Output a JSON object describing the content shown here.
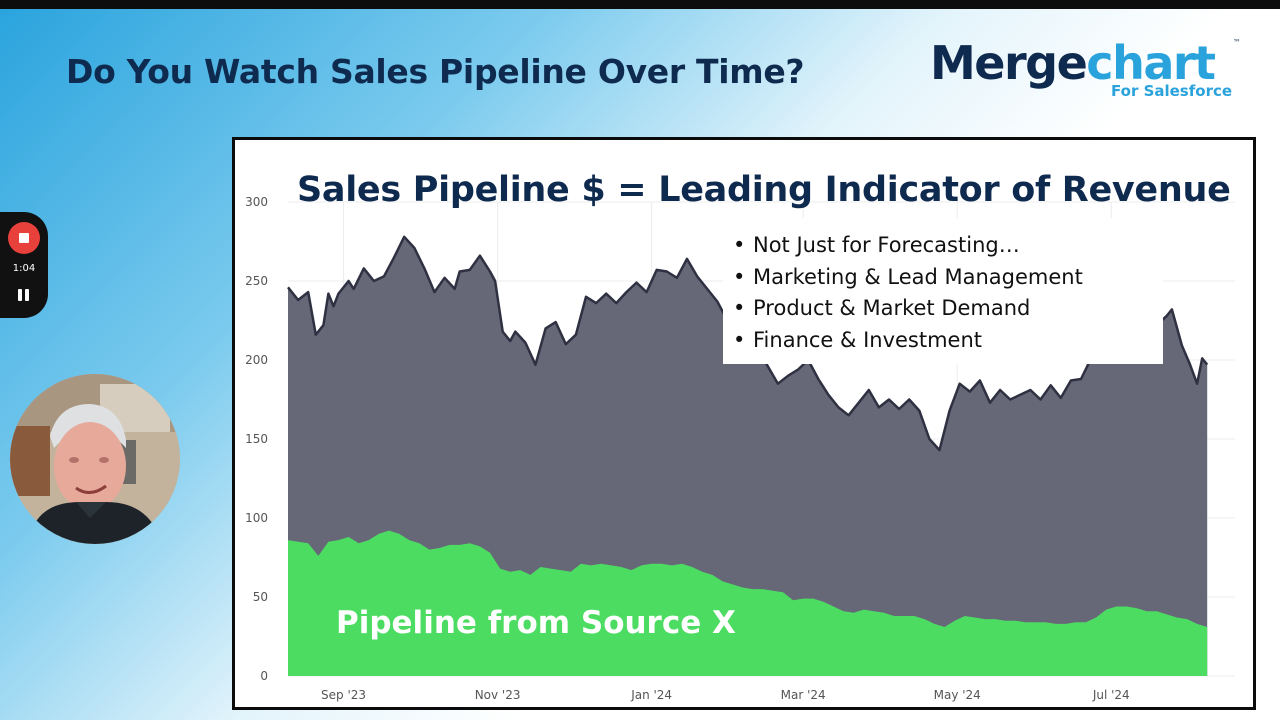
{
  "slide": {
    "title": "Do You Watch Sales Pipeline Over Time?"
  },
  "logo": {
    "name_part1": "Merge",
    "name_part2": "chart",
    "trademark": "™",
    "subtitle": "For Salesforce",
    "colors": {
      "dark": "#0f2a4f",
      "light": "#2aa3dc"
    }
  },
  "recorder": {
    "time": "1:04",
    "stop_icon": "stop-icon",
    "pause_icon": "pause-icon"
  },
  "chart_data": {
    "type": "area",
    "title": "Sales Pipeline $ = Leading Indicator of Revenue",
    "bullets": [
      "Not Just for Forecasting…",
      "Marketing & Lead Management",
      "Product & Market Demand",
      "Finance & Investment"
    ],
    "overlay_label": "Pipeline from Source X",
    "x_ticks": [
      {
        "date": "2023-09-01",
        "label": "Sep '23"
      },
      {
        "date": "2023-11-01",
        "label": "Nov '23"
      },
      {
        "date": "2024-01-01",
        "label": "Jan '24"
      },
      {
        "date": "2024-03-01",
        "label": "Mar '24"
      },
      {
        "date": "2024-05-01",
        "label": "May '24"
      },
      {
        "date": "2024-07-01",
        "label": "Jul '24"
      }
    ],
    "y_ticks": [
      0,
      50,
      100,
      150,
      200,
      250,
      300
    ],
    "xlim": [
      "2023-08-10",
      "2024-08-19"
    ],
    "ylim": [
      0,
      300
    ],
    "grid": true,
    "colors": {
      "total": "#676877",
      "total_line": "#2f3142",
      "source_x": "#4cdc62"
    },
    "series": [
      {
        "role": "total",
        "points": [
          [
            "2023-08-10",
            246
          ],
          [
            "2023-08-14",
            238
          ],
          [
            "2023-08-18",
            243
          ],
          [
            "2023-08-21",
            216
          ],
          [
            "2023-08-24",
            222
          ],
          [
            "2023-08-26",
            242
          ],
          [
            "2023-08-28",
            234
          ],
          [
            "2023-08-30",
            242
          ],
          [
            "2023-09-03",
            250
          ],
          [
            "2023-09-05",
            245
          ],
          [
            "2023-09-09",
            258
          ],
          [
            "2023-09-13",
            250
          ],
          [
            "2023-09-17",
            253
          ],
          [
            "2023-09-21",
            265
          ],
          [
            "2023-09-25",
            278
          ],
          [
            "2023-09-29",
            271
          ],
          [
            "2023-10-03",
            258
          ],
          [
            "2023-10-07",
            243
          ],
          [
            "2023-10-11",
            252
          ],
          [
            "2023-10-15",
            245
          ],
          [
            "2023-10-17",
            256
          ],
          [
            "2023-10-21",
            257
          ],
          [
            "2023-10-25",
            266
          ],
          [
            "2023-10-29",
            256
          ],
          [
            "2023-10-31",
            250
          ],
          [
            "2023-11-03",
            218
          ],
          [
            "2023-11-06",
            212
          ],
          [
            "2023-11-08",
            218
          ],
          [
            "2023-11-12",
            211
          ],
          [
            "2023-11-16",
            197
          ],
          [
            "2023-11-20",
            220
          ],
          [
            "2023-11-24",
            224
          ],
          [
            "2023-11-28",
            210
          ],
          [
            "2023-12-02",
            216
          ],
          [
            "2023-12-06",
            240
          ],
          [
            "2023-12-10",
            236
          ],
          [
            "2023-12-14",
            242
          ],
          [
            "2023-12-18",
            236
          ],
          [
            "2023-12-22",
            243
          ],
          [
            "2023-12-26",
            249
          ],
          [
            "2023-12-30",
            243
          ],
          [
            "2024-01-03",
            257
          ],
          [
            "2024-01-07",
            256
          ],
          [
            "2024-01-11",
            252
          ],
          [
            "2024-01-15",
            264
          ],
          [
            "2024-01-19",
            253
          ],
          [
            "2024-01-23",
            245
          ],
          [
            "2024-01-27",
            237
          ],
          [
            "2024-01-31",
            225
          ],
          [
            "2024-02-04",
            218
          ],
          [
            "2024-02-08",
            212
          ],
          [
            "2024-02-12",
            207
          ],
          [
            "2024-02-16",
            196
          ],
          [
            "2024-02-20",
            185
          ],
          [
            "2024-02-24",
            190
          ],
          [
            "2024-02-28",
            194
          ],
          [
            "2024-03-03",
            200
          ],
          [
            "2024-03-07",
            188
          ],
          [
            "2024-03-11",
            178
          ],
          [
            "2024-03-15",
            170
          ],
          [
            "2024-03-19",
            165
          ],
          [
            "2024-03-23",
            173
          ],
          [
            "2024-03-27",
            181
          ],
          [
            "2024-03-31",
            170
          ],
          [
            "2024-04-04",
            175
          ],
          [
            "2024-04-08",
            169
          ],
          [
            "2024-04-12",
            175
          ],
          [
            "2024-04-16",
            168
          ],
          [
            "2024-04-20",
            150
          ],
          [
            "2024-04-24",
            143
          ],
          [
            "2024-04-28",
            168
          ],
          [
            "2024-05-02",
            185
          ],
          [
            "2024-05-06",
            180
          ],
          [
            "2024-05-10",
            187
          ],
          [
            "2024-05-14",
            173
          ],
          [
            "2024-05-18",
            181
          ],
          [
            "2024-05-22",
            175
          ],
          [
            "2024-05-26",
            178
          ],
          [
            "2024-05-30",
            181
          ],
          [
            "2024-06-03",
            175
          ],
          [
            "2024-06-07",
            184
          ],
          [
            "2024-06-11",
            176
          ],
          [
            "2024-06-15",
            187
          ],
          [
            "2024-06-19",
            188
          ],
          [
            "2024-06-23",
            201
          ],
          [
            "2024-06-27",
            237
          ],
          [
            "2024-06-29",
            256
          ],
          [
            "2024-07-01",
            255
          ],
          [
            "2024-07-05",
            264
          ],
          [
            "2024-07-07",
            246
          ],
          [
            "2024-07-11",
            256
          ],
          [
            "2024-07-15",
            253
          ],
          [
            "2024-07-19",
            222
          ],
          [
            "2024-07-23",
            228
          ],
          [
            "2024-07-25",
            232
          ],
          [
            "2024-07-29",
            209
          ],
          [
            "2024-08-01",
            198
          ],
          [
            "2024-08-04",
            185
          ],
          [
            "2024-08-06",
            201
          ],
          [
            "2024-08-08",
            197
          ]
        ]
      },
      {
        "role": "source_x",
        "name": "Pipeline from Source X",
        "points": [
          [
            "2023-08-10",
            86
          ],
          [
            "2023-08-14",
            85
          ],
          [
            "2023-08-18",
            84
          ],
          [
            "2023-08-22",
            76
          ],
          [
            "2023-08-26",
            85
          ],
          [
            "2023-08-30",
            86
          ],
          [
            "2023-09-03",
            88
          ],
          [
            "2023-09-07",
            84
          ],
          [
            "2023-09-11",
            86
          ],
          [
            "2023-09-15",
            90
          ],
          [
            "2023-09-19",
            92
          ],
          [
            "2023-09-23",
            90
          ],
          [
            "2023-09-27",
            86
          ],
          [
            "2023-10-01",
            84
          ],
          [
            "2023-10-05",
            80
          ],
          [
            "2023-10-09",
            81
          ],
          [
            "2023-10-13",
            83
          ],
          [
            "2023-10-17",
            83
          ],
          [
            "2023-10-21",
            84
          ],
          [
            "2023-10-25",
            82
          ],
          [
            "2023-10-29",
            78
          ],
          [
            "2023-11-02",
            68
          ],
          [
            "2023-11-06",
            66
          ],
          [
            "2023-11-10",
            67
          ],
          [
            "2023-11-14",
            64
          ],
          [
            "2023-11-18",
            69
          ],
          [
            "2023-11-22",
            68
          ],
          [
            "2023-11-26",
            67
          ],
          [
            "2023-11-30",
            66
          ],
          [
            "2023-12-04",
            71
          ],
          [
            "2023-12-08",
            70
          ],
          [
            "2023-12-12",
            71
          ],
          [
            "2023-12-16",
            70
          ],
          [
            "2023-12-20",
            69
          ],
          [
            "2023-12-24",
            67
          ],
          [
            "2023-12-28",
            70
          ],
          [
            "2024-01-01",
            71
          ],
          [
            "2024-01-05",
            71
          ],
          [
            "2024-01-09",
            70
          ],
          [
            "2024-01-13",
            71
          ],
          [
            "2024-01-17",
            69
          ],
          [
            "2024-01-21",
            66
          ],
          [
            "2024-01-25",
            64
          ],
          [
            "2024-01-29",
            60
          ],
          [
            "2024-02-02",
            58
          ],
          [
            "2024-02-06",
            56
          ],
          [
            "2024-02-10",
            55
          ],
          [
            "2024-02-14",
            55
          ],
          [
            "2024-02-18",
            54
          ],
          [
            "2024-02-22",
            53
          ],
          [
            "2024-02-26",
            48
          ],
          [
            "2024-03-01",
            49
          ],
          [
            "2024-03-05",
            49
          ],
          [
            "2024-03-09",
            47
          ],
          [
            "2024-03-13",
            44
          ],
          [
            "2024-03-17",
            41
          ],
          [
            "2024-03-21",
            40
          ],
          [
            "2024-03-25",
            42
          ],
          [
            "2024-03-29",
            41
          ],
          [
            "2024-04-02",
            40
          ],
          [
            "2024-04-06",
            38
          ],
          [
            "2024-04-10",
            38
          ],
          [
            "2024-04-14",
            38
          ],
          [
            "2024-04-18",
            36
          ],
          [
            "2024-04-22",
            33
          ],
          [
            "2024-04-26",
            31
          ],
          [
            "2024-04-30",
            35
          ],
          [
            "2024-05-04",
            38
          ],
          [
            "2024-05-08",
            37
          ],
          [
            "2024-05-12",
            36
          ],
          [
            "2024-05-16",
            36
          ],
          [
            "2024-05-20",
            35
          ],
          [
            "2024-05-24",
            35
          ],
          [
            "2024-05-28",
            34
          ],
          [
            "2024-06-01",
            34
          ],
          [
            "2024-06-05",
            34
          ],
          [
            "2024-06-09",
            33
          ],
          [
            "2024-06-13",
            33
          ],
          [
            "2024-06-17",
            34
          ],
          [
            "2024-06-21",
            34
          ],
          [
            "2024-06-25",
            37
          ],
          [
            "2024-06-29",
            42
          ],
          [
            "2024-07-03",
            44
          ],
          [
            "2024-07-07",
            44
          ],
          [
            "2024-07-11",
            43
          ],
          [
            "2024-07-15",
            41
          ],
          [
            "2024-07-19",
            41
          ],
          [
            "2024-07-23",
            39
          ],
          [
            "2024-07-27",
            37
          ],
          [
            "2024-07-31",
            36
          ],
          [
            "2024-08-04",
            33
          ],
          [
            "2024-08-08",
            31
          ]
        ]
      }
    ]
  }
}
